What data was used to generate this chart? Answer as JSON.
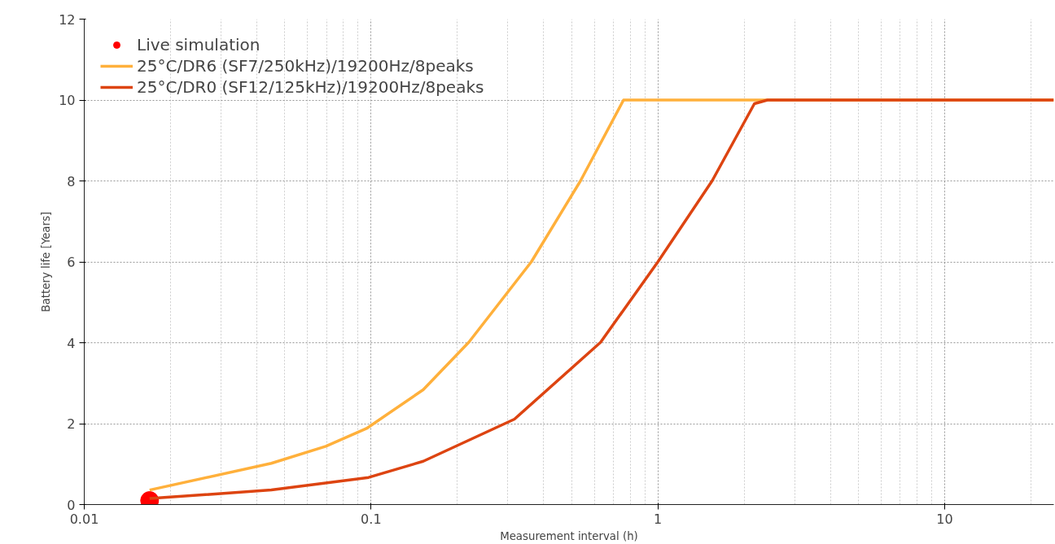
{
  "chart_data": {
    "type": "line",
    "xlabel": "Measurement interval (h)",
    "ylabel": "Battery life [Years]",
    "log": "x",
    "xlim": [
      0.01,
      24
    ],
    "ylim": [
      0,
      12
    ],
    "xticks": [
      0.01,
      0.1,
      1,
      10
    ],
    "yticks": [
      0,
      2,
      4,
      6,
      8,
      10,
      12
    ],
    "grid": true,
    "legend": "top left",
    "line_style": "solid",
    "series": [
      {
        "name": "Live simulation",
        "type": "scatter",
        "marker": "circle",
        "color": "#ff0000",
        "x": [
          0.0169
        ],
        "values": [
          0.1
        ]
      },
      {
        "name": "25°C/DR6 (SF7/250kHz)/19200Hz/8peaks",
        "color": "#ffb03b",
        "x": [
          0.0169,
          0.0449,
          0.0695,
          0.0964,
          0.152,
          0.219,
          0.362,
          0.537,
          0.759,
          24
        ],
        "values": [
          0.36,
          1.02,
          1.44,
          1.88,
          2.84,
          4.01,
          6.0,
          8.0,
          10.0,
          10.0
        ]
      },
      {
        "name": "25°C/DR0 (SF12/125kHz)/19200Hz/8peaks",
        "color": "#dd4411",
        "x": [
          0.0169,
          0.0449,
          0.098,
          0.152,
          0.316,
          0.631,
          1.0,
          1.545,
          2.17,
          2.41,
          24
        ],
        "values": [
          0.15,
          0.36,
          0.67,
          1.07,
          2.11,
          4.01,
          6.0,
          8.0,
          9.91,
          10.0,
          10.0
        ]
      }
    ]
  }
}
